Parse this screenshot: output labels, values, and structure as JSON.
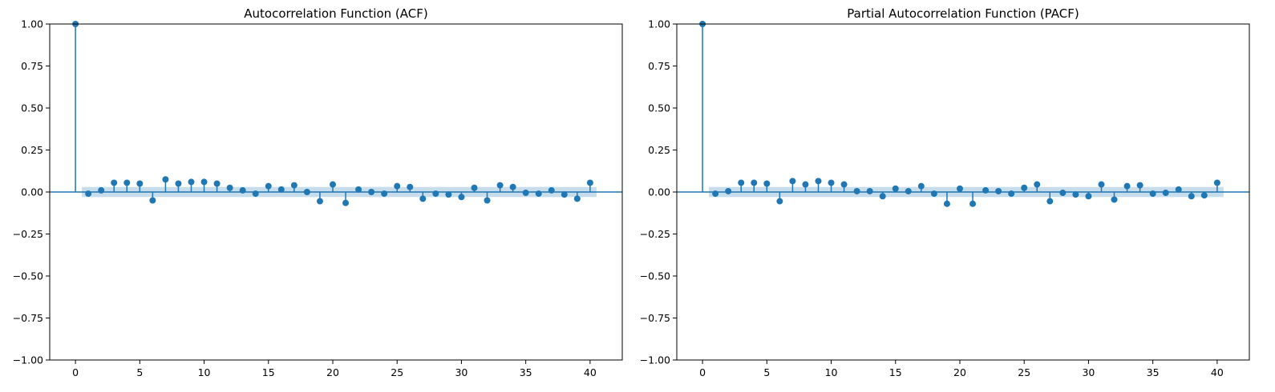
{
  "colors": {
    "stem": "#1f77b4",
    "band": "#1f77b4",
    "axes": "#000000"
  },
  "chart_data": [
    {
      "type": "stem",
      "title": "Autocorrelation Function (ACF)",
      "xlabel": "",
      "ylabel": "",
      "xlim": [
        -2,
        42.5
      ],
      "ylim": [
        -1,
        1
      ],
      "xticks": [
        0,
        5,
        10,
        15,
        20,
        25,
        30,
        35,
        40
      ],
      "yticks": [
        -1.0,
        -0.75,
        -0.5,
        -0.25,
        0.0,
        0.25,
        0.5,
        0.75,
        1.0
      ],
      "grid": false,
      "confidence_band": [
        -0.03,
        0.03
      ],
      "x": [
        0,
        1,
        2,
        3,
        4,
        5,
        6,
        7,
        8,
        9,
        10,
        11,
        12,
        13,
        14,
        15,
        16,
        17,
        18,
        19,
        20,
        21,
        22,
        23,
        24,
        25,
        26,
        27,
        28,
        29,
        30,
        31,
        32,
        33,
        34,
        35,
        36,
        37,
        38,
        39,
        40
      ],
      "values": [
        1.0,
        -0.01,
        0.01,
        0.055,
        0.055,
        0.05,
        -0.05,
        0.075,
        0.05,
        0.06,
        0.06,
        0.05,
        0.025,
        0.01,
        -0.01,
        0.035,
        0.015,
        0.04,
        0.0,
        -0.055,
        0.045,
        -0.065,
        0.015,
        0.0,
        -0.01,
        0.035,
        0.03,
        -0.04,
        -0.01,
        -0.015,
        -0.03,
        0.025,
        -0.05,
        0.04,
        0.03,
        -0.005,
        -0.01,
        0.01,
        -0.015,
        -0.04,
        0.055
      ]
    },
    {
      "type": "stem",
      "title": "Partial Autocorrelation Function (PACF)",
      "xlabel": "",
      "ylabel": "",
      "xlim": [
        -2,
        42.5
      ],
      "ylim": [
        -1,
        1
      ],
      "xticks": [
        0,
        5,
        10,
        15,
        20,
        25,
        30,
        35,
        40
      ],
      "yticks": [
        -1.0,
        -0.75,
        -0.5,
        -0.25,
        0.0,
        0.25,
        0.5,
        0.75,
        1.0
      ],
      "grid": false,
      "confidence_band": [
        -0.03,
        0.03
      ],
      "x": [
        0,
        1,
        2,
        3,
        4,
        5,
        6,
        7,
        8,
        9,
        10,
        11,
        12,
        13,
        14,
        15,
        16,
        17,
        18,
        19,
        20,
        21,
        22,
        23,
        24,
        25,
        26,
        27,
        28,
        29,
        30,
        31,
        32,
        33,
        34,
        35,
        36,
        37,
        38,
        39,
        40
      ],
      "values": [
        1.0,
        -0.01,
        0.005,
        0.055,
        0.055,
        0.05,
        -0.055,
        0.065,
        0.045,
        0.065,
        0.055,
        0.045,
        0.005,
        0.005,
        -0.025,
        0.02,
        0.005,
        0.035,
        -0.01,
        -0.07,
        0.02,
        -0.07,
        0.01,
        0.005,
        -0.01,
        0.025,
        0.045,
        -0.055,
        -0.005,
        -0.015,
        -0.025,
        0.045,
        -0.045,
        0.035,
        0.04,
        -0.01,
        -0.005,
        0.015,
        -0.025,
        -0.02,
        0.055
      ]
    }
  ]
}
